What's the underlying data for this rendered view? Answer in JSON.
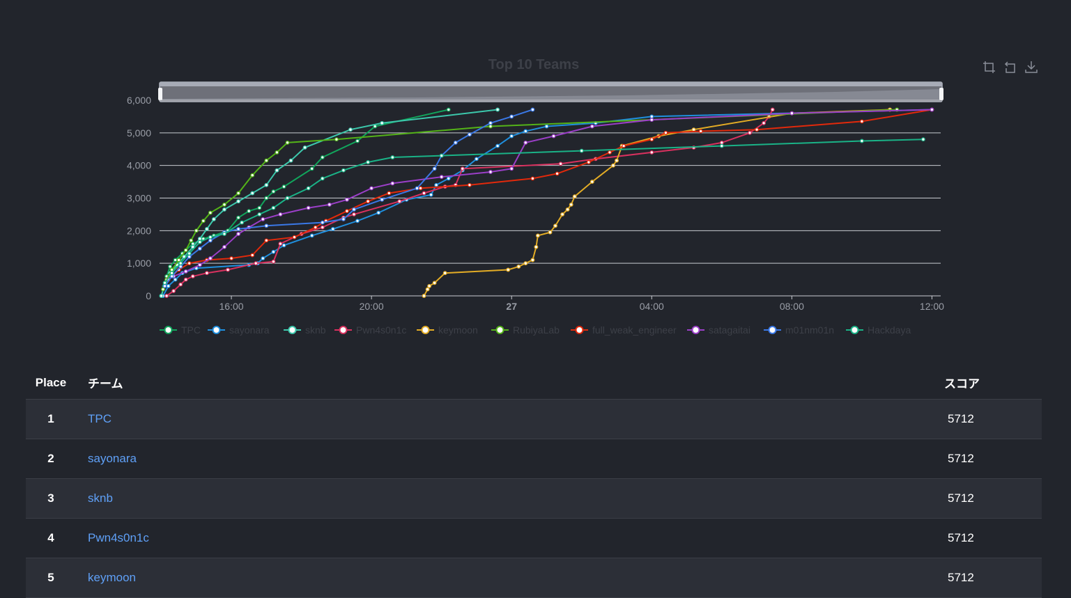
{
  "chart_data": {
    "type": "line",
    "title": "Top 10 Teams",
    "x_tick_labels": [
      "16:00",
      "20:00",
      "27",
      "04:00",
      "08:00",
      "12:00"
    ],
    "y_tick_labels": [
      "0",
      "1,000",
      "2,000",
      "3,000",
      "4,000",
      "5,000",
      "6,000"
    ],
    "xlim": [
      13.95,
      36.25
    ],
    "ylim": [
      0,
      6000
    ],
    "x_unit": "hours from 00:00 on day 26; 24 = 27 00:00",
    "grid": true,
    "legend_position": "bottom",
    "series": [
      {
        "name": "TPC",
        "color": "#11a55c",
        "points": [
          [
            14.0,
            0
          ],
          [
            14.08,
            300
          ],
          [
            14.15,
            600
          ],
          [
            14.25,
            900
          ],
          [
            14.4,
            1100
          ],
          [
            14.6,
            1300
          ],
          [
            14.9,
            1600
          ],
          [
            15.2,
            1750
          ],
          [
            15.5,
            1850
          ],
          [
            15.9,
            2000
          ],
          [
            16.2,
            2400
          ],
          [
            16.5,
            2600
          ],
          [
            16.8,
            2700
          ],
          [
            17.0,
            3000
          ],
          [
            17.2,
            3200
          ],
          [
            17.5,
            3350
          ],
          [
            18.3,
            3900
          ],
          [
            18.6,
            4250
          ],
          [
            19.6,
            4750
          ],
          [
            20.1,
            5200
          ],
          [
            22.2,
            5712
          ]
        ]
      },
      {
        "name": "sayonara",
        "color": "#1f8fde",
        "points": [
          [
            14.05,
            0
          ],
          [
            14.2,
            300
          ],
          [
            14.4,
            500
          ],
          [
            14.6,
            700
          ],
          [
            15.0,
            850
          ],
          [
            16.5,
            950
          ],
          [
            16.75,
            1000
          ],
          [
            16.9,
            1150
          ],
          [
            17.2,
            1350
          ],
          [
            17.5,
            1550
          ],
          [
            18.3,
            1850
          ],
          [
            18.9,
            2050
          ],
          [
            19.6,
            2300
          ],
          [
            20.2,
            2550
          ],
          [
            21.0,
            2950
          ],
          [
            21.7,
            3100
          ],
          [
            21.85,
            3400
          ],
          [
            22.2,
            3600
          ],
          [
            22.6,
            3850
          ],
          [
            23.0,
            4200
          ],
          [
            23.6,
            4600
          ],
          [
            24.0,
            4900
          ],
          [
            24.4,
            5050
          ],
          [
            25.0,
            5200
          ],
          [
            26.4,
            5300
          ],
          [
            28.0,
            5500
          ],
          [
            36.0,
            5712
          ]
        ]
      },
      {
        "name": "sknb",
        "color": "#3cc8ac",
        "points": [
          [
            14.0,
            0
          ],
          [
            14.12,
            400
          ],
          [
            14.25,
            700
          ],
          [
            14.45,
            950
          ],
          [
            14.65,
            1200
          ],
          [
            14.9,
            1500
          ],
          [
            15.1,
            1750
          ],
          [
            15.3,
            2050
          ],
          [
            15.5,
            2350
          ],
          [
            15.8,
            2650
          ],
          [
            16.2,
            2900
          ],
          [
            16.6,
            3150
          ],
          [
            17.0,
            3400
          ],
          [
            17.3,
            3850
          ],
          [
            17.7,
            4150
          ],
          [
            18.1,
            4550
          ],
          [
            19.4,
            5100
          ],
          [
            20.3,
            5300
          ],
          [
            23.6,
            5712
          ]
        ]
      },
      {
        "name": "Pwn4s0n1c",
        "color": "#d9315f",
        "points": [
          [
            14.15,
            0
          ],
          [
            14.35,
            150
          ],
          [
            14.55,
            350
          ],
          [
            14.7,
            500
          ],
          [
            14.9,
            600
          ],
          [
            15.3,
            700
          ],
          [
            15.9,
            800
          ],
          [
            16.7,
            1000
          ],
          [
            17.2,
            1050
          ],
          [
            17.4,
            1600
          ],
          [
            18.0,
            1900
          ],
          [
            18.6,
            2100
          ],
          [
            19.2,
            2400
          ],
          [
            19.5,
            2500
          ],
          [
            20.8,
            2900
          ],
          [
            21.5,
            3150
          ],
          [
            22.1,
            3350
          ],
          [
            22.4,
            3400
          ],
          [
            22.6,
            3900
          ],
          [
            25.4,
            4050
          ],
          [
            26.4,
            4200
          ],
          [
            28.0,
            4400
          ],
          [
            29.2,
            4550
          ],
          [
            30.0,
            4700
          ],
          [
            30.8,
            5000
          ],
          [
            31.2,
            5300
          ],
          [
            31.35,
            5500
          ],
          [
            31.45,
            5712
          ]
        ]
      },
      {
        "name": "keymoon",
        "color": "#e3ac25",
        "points": [
          [
            21.5,
            0
          ],
          [
            21.6,
            200
          ],
          [
            21.65,
            300
          ],
          [
            21.8,
            400
          ],
          [
            22.1,
            700
          ],
          [
            23.9,
            800
          ],
          [
            24.2,
            900
          ],
          [
            24.4,
            1000
          ],
          [
            24.6,
            1100
          ],
          [
            24.7,
            1500
          ],
          [
            24.75,
            1850
          ],
          [
            25.1,
            1950
          ],
          [
            25.25,
            2150
          ],
          [
            25.45,
            2500
          ],
          [
            25.6,
            2650
          ],
          [
            25.7,
            2800
          ],
          [
            25.8,
            3050
          ],
          [
            26.3,
            3500
          ],
          [
            26.9,
            4000
          ],
          [
            27.0,
            4150
          ],
          [
            27.15,
            4600
          ],
          [
            28.2,
            4900
          ],
          [
            29.2,
            5100
          ],
          [
            32.0,
            5600
          ],
          [
            34.8,
            5712
          ]
        ]
      },
      {
        "name": "RubiyaLab",
        "color": "#54b318",
        "points": [
          [
            14.05,
            200
          ],
          [
            14.15,
            500
          ],
          [
            14.3,
            800
          ],
          [
            14.5,
            1100
          ],
          [
            14.7,
            1400
          ],
          [
            14.85,
            1700
          ],
          [
            15.0,
            2000
          ],
          [
            15.2,
            2300
          ],
          [
            15.4,
            2550
          ],
          [
            15.8,
            2800
          ],
          [
            16.2,
            3150
          ],
          [
            16.6,
            3700
          ],
          [
            17.0,
            4150
          ],
          [
            17.3,
            4400
          ],
          [
            17.6,
            4700
          ],
          [
            19.0,
            4800
          ],
          [
            23.4,
            5200
          ],
          [
            35.0,
            5712
          ]
        ]
      },
      {
        "name": "full_weak_engineer",
        "color": "#e2290b",
        "points": [
          [
            14.2,
            500
          ],
          [
            14.5,
            800
          ],
          [
            14.8,
            1000
          ],
          [
            15.3,
            1100
          ],
          [
            16.0,
            1150
          ],
          [
            16.6,
            1250
          ],
          [
            17.0,
            1700
          ],
          [
            17.8,
            1800
          ],
          [
            18.4,
            2100
          ],
          [
            18.7,
            2300
          ],
          [
            19.3,
            2600
          ],
          [
            19.9,
            2900
          ],
          [
            20.5,
            3150
          ],
          [
            21.4,
            3300
          ],
          [
            22.8,
            3400
          ],
          [
            24.6,
            3600
          ],
          [
            25.3,
            3750
          ],
          [
            26.2,
            4100
          ],
          [
            26.8,
            4400
          ],
          [
            27.2,
            4600
          ],
          [
            28.0,
            4800
          ],
          [
            28.4,
            5000
          ],
          [
            29.4,
            5050
          ],
          [
            31.0,
            5100
          ],
          [
            34.0,
            5350
          ],
          [
            36.0,
            5712
          ]
        ]
      },
      {
        "name": "satagaitai",
        "color": "#9b3fc8",
        "points": [
          [
            14.35,
            600
          ],
          [
            14.7,
            750
          ],
          [
            15.1,
            950
          ],
          [
            15.4,
            1150
          ],
          [
            15.8,
            1500
          ],
          [
            16.2,
            1900
          ],
          [
            16.5,
            2100
          ],
          [
            16.9,
            2350
          ],
          [
            17.4,
            2500
          ],
          [
            18.2,
            2700
          ],
          [
            18.8,
            2800
          ],
          [
            19.3,
            2950
          ],
          [
            20.0,
            3300
          ],
          [
            20.6,
            3450
          ],
          [
            22.0,
            3650
          ],
          [
            23.4,
            3800
          ],
          [
            24.0,
            3900
          ],
          [
            24.4,
            4700
          ],
          [
            25.2,
            4900
          ],
          [
            26.3,
            5200
          ],
          [
            28.0,
            5400
          ],
          [
            32.0,
            5600
          ],
          [
            36.0,
            5712
          ]
        ]
      },
      {
        "name": "m01nm01n",
        "color": "#3a78e6",
        "points": [
          [
            14.1,
            300
          ],
          [
            14.3,
            600
          ],
          [
            14.55,
            900
          ],
          [
            14.8,
            1200
          ],
          [
            15.1,
            1450
          ],
          [
            15.4,
            1700
          ],
          [
            15.8,
            1950
          ],
          [
            16.2,
            2050
          ],
          [
            17.0,
            2150
          ],
          [
            18.6,
            2250
          ],
          [
            19.2,
            2350
          ],
          [
            19.5,
            2650
          ],
          [
            20.3,
            2950
          ],
          [
            21.3,
            3300
          ],
          [
            21.8,
            3900
          ],
          [
            22.0,
            4300
          ],
          [
            22.4,
            4700
          ],
          [
            22.8,
            4950
          ],
          [
            23.4,
            5300
          ],
          [
            24.0,
            5500
          ],
          [
            24.6,
            5712
          ]
        ]
      },
      {
        "name": "Hackdaya",
        "color": "#1ab387",
        "points": [
          [
            14.1,
            400
          ],
          [
            14.3,
            700
          ],
          [
            14.55,
            1000
          ],
          [
            14.8,
            1300
          ],
          [
            15.1,
            1650
          ],
          [
            15.4,
            1800
          ],
          [
            15.8,
            1900
          ],
          [
            16.3,
            2250
          ],
          [
            16.8,
            2500
          ],
          [
            17.2,
            2700
          ],
          [
            17.6,
            3000
          ],
          [
            18.2,
            3300
          ],
          [
            18.6,
            3600
          ],
          [
            19.2,
            3850
          ],
          [
            19.9,
            4100
          ],
          [
            20.6,
            4250
          ],
          [
            22.0,
            4300
          ],
          [
            26.0,
            4450
          ],
          [
            30.0,
            4600
          ],
          [
            34.0,
            4750
          ],
          [
            35.75,
            4800
          ]
        ]
      }
    ]
  },
  "toolbox": {
    "icons": [
      "zoom-icon",
      "zoom-reset-icon",
      "download-icon"
    ],
    "color": "#8a8f99"
  },
  "scoreboard": {
    "headers": {
      "place": "Place",
      "team": "チーム",
      "score": "スコア"
    },
    "link_color": "#5fa0f7",
    "rows": [
      {
        "place": "1",
        "team": "TPC",
        "score": "5712"
      },
      {
        "place": "2",
        "team": "sayonara",
        "score": "5712"
      },
      {
        "place": "3",
        "team": "sknb",
        "score": "5712"
      },
      {
        "place": "4",
        "team": "Pwn4s0n1c",
        "score": "5712"
      },
      {
        "place": "5",
        "team": "keymoon",
        "score": "5712"
      }
    ]
  }
}
